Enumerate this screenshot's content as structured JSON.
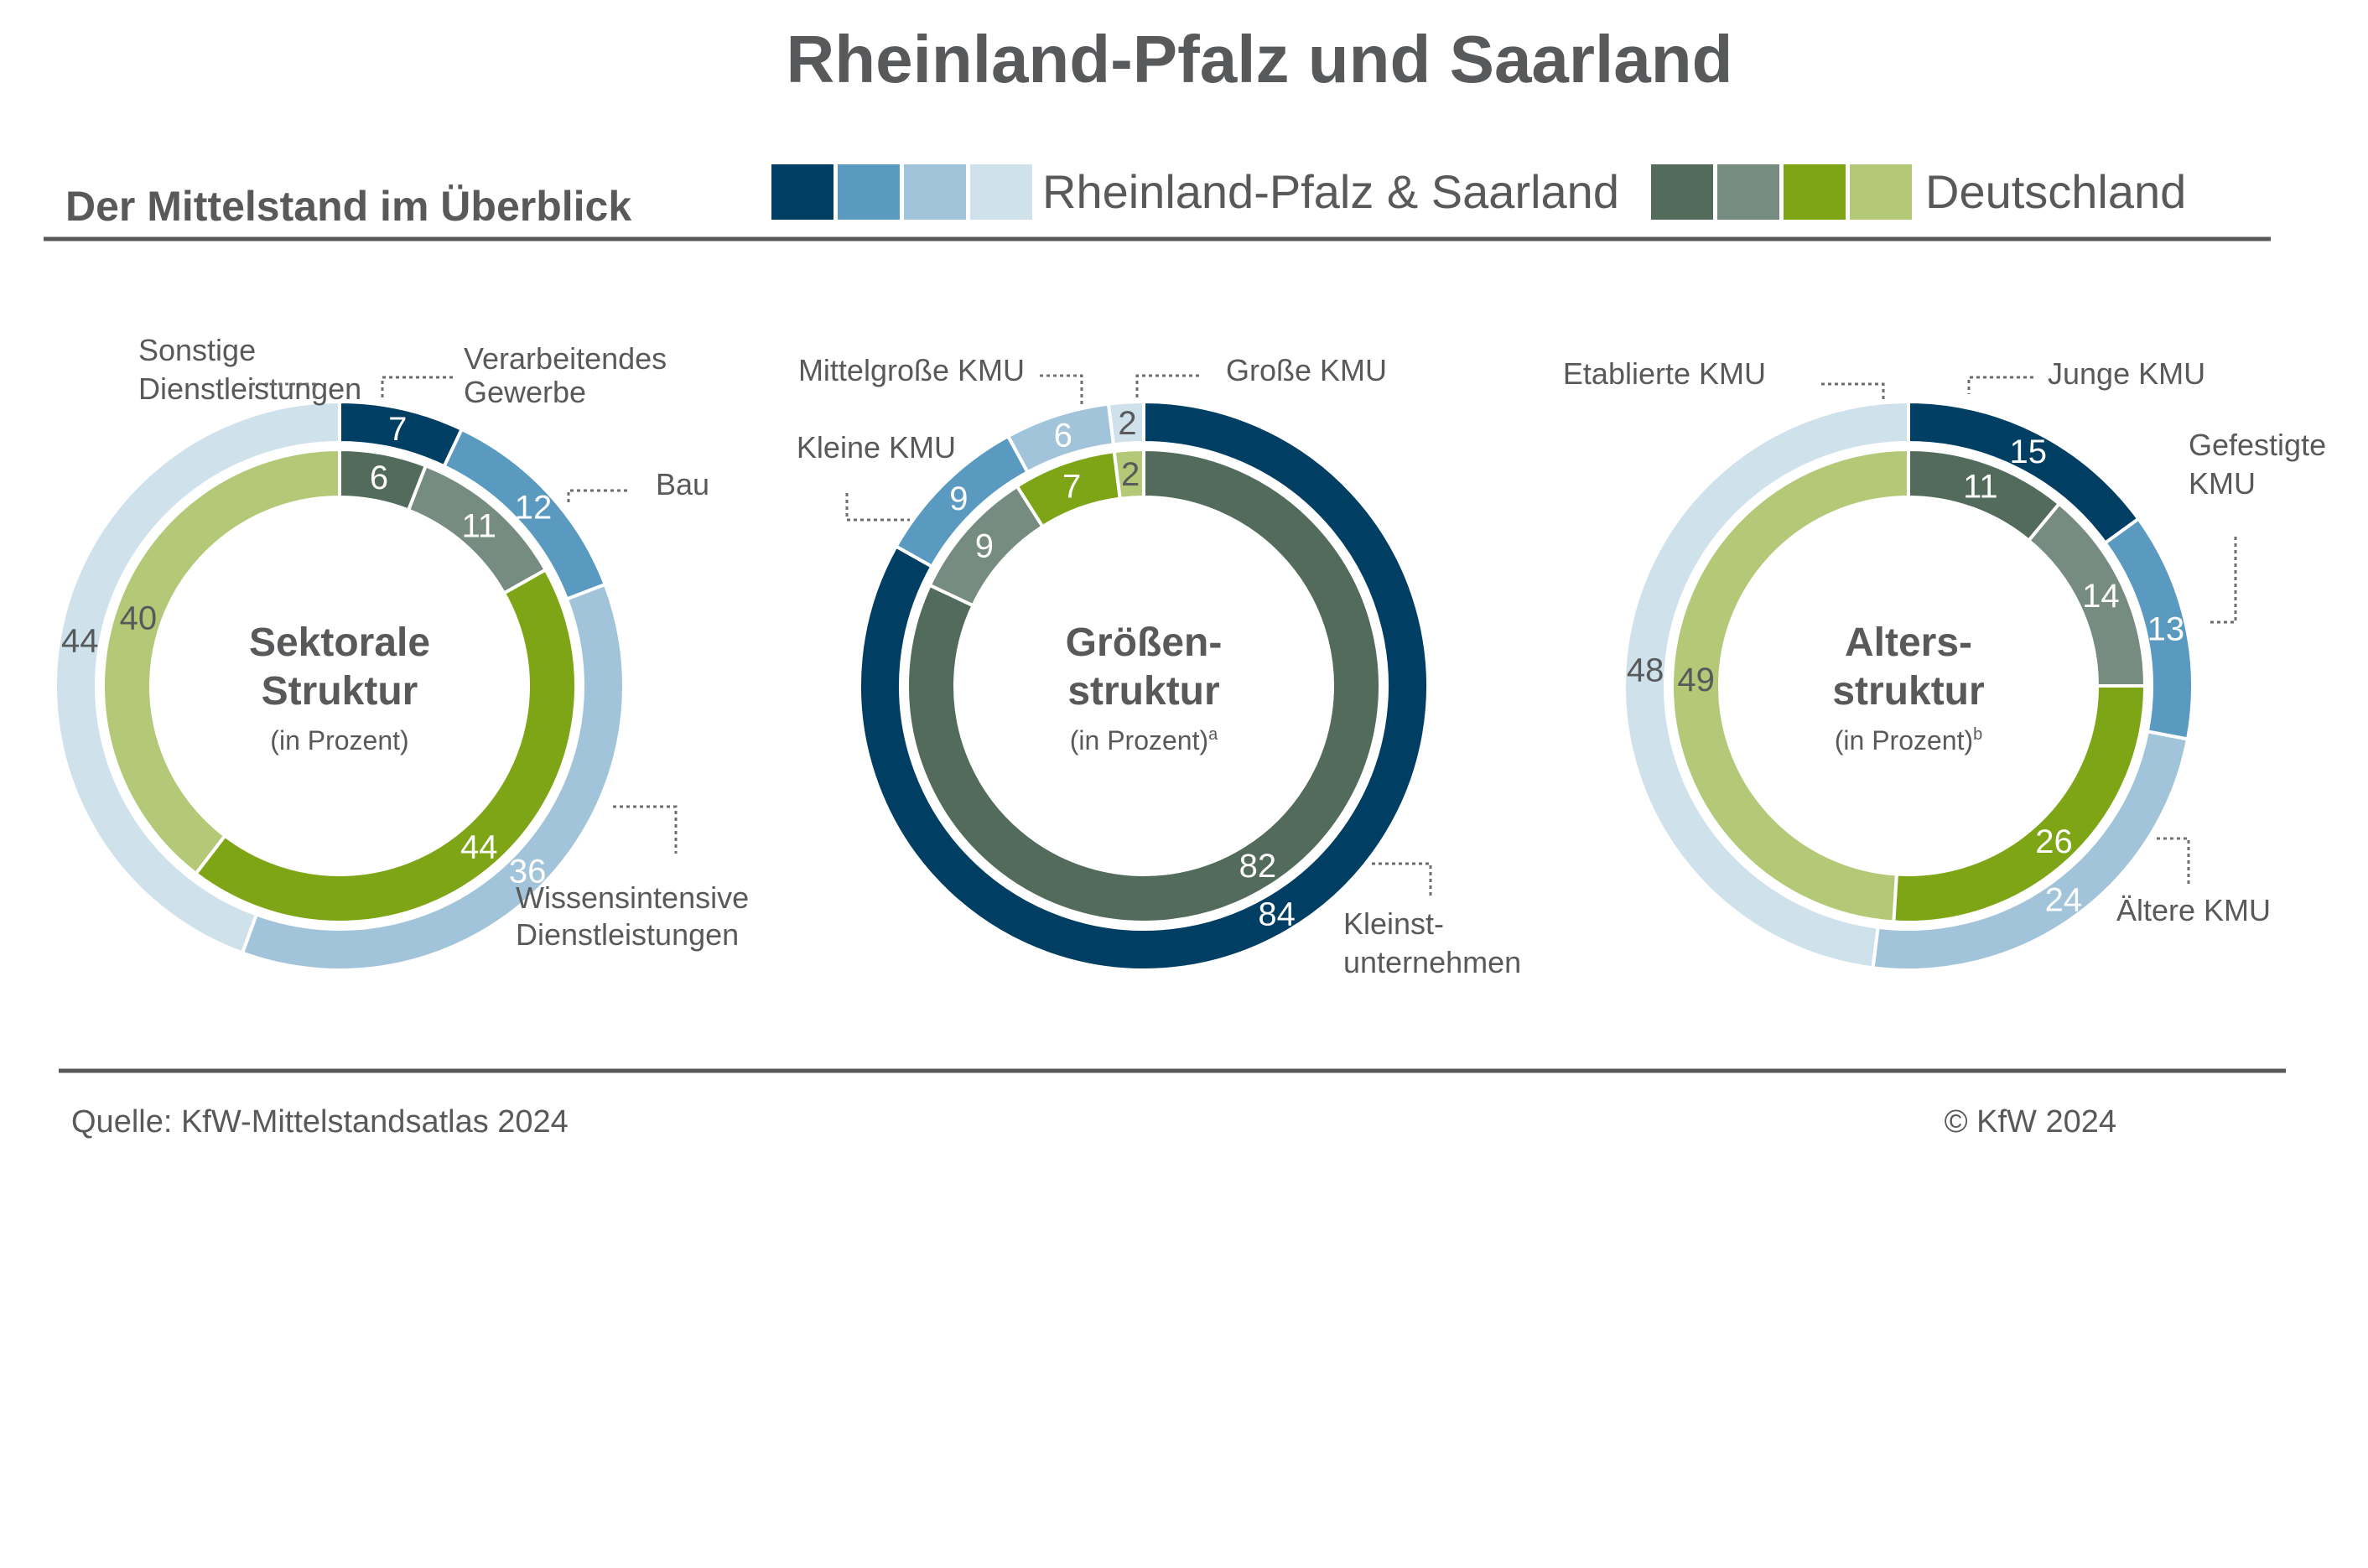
{
  "title": "Rheinland-Pfalz und Saarland",
  "subtitle": "Der Mittelstand im Überblick",
  "legend": {
    "region": {
      "label": "Rheinland-Pfalz & Saarland",
      "colors": [
        "#003f63",
        "#5a9ac1",
        "#a2c4da",
        "#cfe1eb"
      ]
    },
    "germany": {
      "label": "Deutschland",
      "colors": [
        "#526b5b",
        "#778c80",
        "#7ea516",
        "#b4c977"
      ]
    }
  },
  "footer": {
    "source": "Quelle: KfW-Mittelstandsatlas 2024",
    "copyright": "© KfW 2024"
  },
  "colors": {
    "title": "#58595b",
    "rule": "#58595b",
    "label": "#58595b",
    "leader": "#6d6e70"
  },
  "chart_data": [
    {
      "type": "pie",
      "center_title": [
        "Sektorale",
        "Struktur"
      ],
      "center_sub": "(in Prozent)",
      "center_sup": "",
      "categories": [
        "Verarbeitendes Gewerbe",
        "Bau",
        "Wissensintensive Dienstleistungen",
        "Sonstige Dienstleistungen"
      ],
      "category_labels": [
        {
          "lines": [
            "Verarbeitendes",
            "Gewerbe"
          ]
        },
        {
          "lines": [
            "Bau"
          ]
        },
        {
          "lines": [
            "Wissensintensive",
            "Dienstleistungen"
          ]
        },
        {
          "lines": [
            "Sonstige",
            "Dienstleistungen"
          ]
        }
      ],
      "series": [
        {
          "name": "Rheinland-Pfalz & Saarland",
          "ring": "outer",
          "values": [
            7,
            12,
            36,
            44
          ]
        },
        {
          "name": "Deutschland",
          "ring": "inner",
          "values": [
            6,
            11,
            44,
            40
          ]
        }
      ]
    },
    {
      "type": "pie",
      "center_title": [
        "Größen-",
        "struktur"
      ],
      "center_sub": "(in Prozent)",
      "center_sup": "a",
      "categories": [
        "Kleinstunternehmen",
        "Kleine KMU",
        "Mittelgroße KMU",
        "Große KMU"
      ],
      "category_labels": [
        {
          "lines": [
            "Kleinst-",
            "unternehmen"
          ]
        },
        {
          "lines": [
            "Kleine KMU"
          ]
        },
        {
          "lines": [
            "Mittelgroße KMU"
          ]
        },
        {
          "lines": [
            "Große KMU"
          ]
        }
      ],
      "series": [
        {
          "name": "Rheinland-Pfalz & Saarland",
          "ring": "outer",
          "values": [
            84,
            9,
            6,
            2
          ]
        },
        {
          "name": "Deutschland",
          "ring": "inner",
          "values": [
            82,
            9,
            7,
            2
          ]
        }
      ]
    },
    {
      "type": "pie",
      "center_title": [
        "Alters-",
        "struktur"
      ],
      "center_sub": "(in Prozent)",
      "center_sup": "b",
      "categories": [
        "Junge KMU",
        "Gefestigte KMU",
        "Ältere KMU",
        "Etablierte KMU"
      ],
      "category_labels": [
        {
          "lines": [
            "Junge KMU"
          ]
        },
        {
          "lines": [
            "Gefestigte",
            "KMU"
          ]
        },
        {
          "lines": [
            "Ältere KMU"
          ]
        },
        {
          "lines": [
            "Etablierte KMU"
          ]
        }
      ],
      "series": [
        {
          "name": "Rheinland-Pfalz & Saarland",
          "ring": "outer",
          "values": [
            15,
            13,
            24,
            48
          ]
        },
        {
          "name": "Deutschland",
          "ring": "inner",
          "values": [
            11,
            14,
            26,
            49
          ]
        }
      ]
    }
  ]
}
